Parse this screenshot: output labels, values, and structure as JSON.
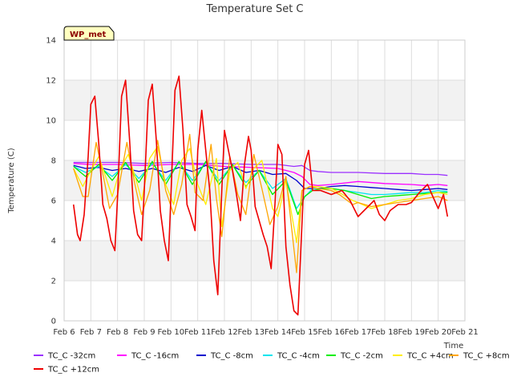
{
  "chart_data": {
    "type": "line",
    "title": "Temperature Set C",
    "xlabel": "Time",
    "ylabel": "Temperature (C)",
    "badge": "WP_met",
    "xlim": [
      6,
      21
    ],
    "ylim": [
      0,
      14
    ],
    "x_ticks": [
      {
        "v": 6,
        "label": "Feb 6"
      },
      {
        "v": 7,
        "label": "Feb 7"
      },
      {
        "v": 8,
        "label": "Feb 8"
      },
      {
        "v": 9,
        "label": "Feb 9"
      },
      {
        "v": 10,
        "label": "Feb 10"
      },
      {
        "v": 11,
        "label": "Feb 11"
      },
      {
        "v": 12,
        "label": "Feb 12"
      },
      {
        "v": 13,
        "label": "Feb 13"
      },
      {
        "v": 14,
        "label": "Feb 14"
      },
      {
        "v": 15,
        "label": "Feb 15"
      },
      {
        "v": 16,
        "label": "Feb 16"
      },
      {
        "v": 17,
        "label": "Feb 17"
      },
      {
        "v": 18,
        "label": "Feb 18"
      },
      {
        "v": 19,
        "label": "Feb 19"
      },
      {
        "v": 20,
        "label": "Feb 20"
      },
      {
        "v": 21,
        "label": "Feb 21"
      }
    ],
    "y_ticks": [
      0,
      2,
      4,
      6,
      8,
      10,
      12,
      14
    ],
    "grid": true,
    "legend_position": "bottom",
    "series": [
      {
        "name": "TC_C -32cm",
        "color": "#9b30ff",
        "x": [
          6.35,
          7,
          8,
          9,
          10,
          11,
          12,
          13,
          14,
          14.6,
          14.9,
          15.2,
          15.5,
          16,
          17,
          18,
          19,
          19.5,
          20,
          20.35
        ],
        "y": [
          7.9,
          7.9,
          7.9,
          7.85,
          7.9,
          7.85,
          7.85,
          7.8,
          7.8,
          7.7,
          7.75,
          7.5,
          7.45,
          7.4,
          7.4,
          7.35,
          7.35,
          7.3,
          7.3,
          7.25
        ]
      },
      {
        "name": "TC_C -16cm",
        "color": "#ff00ff",
        "x": [
          6.35,
          7,
          8,
          9,
          10,
          11,
          12,
          13,
          14,
          14.6,
          14.9,
          15.2,
          15.5,
          16,
          17,
          18,
          19,
          19.5,
          20,
          20.35
        ],
        "y": [
          7.85,
          7.8,
          7.8,
          7.75,
          7.8,
          7.8,
          7.7,
          7.65,
          7.6,
          7.4,
          7.2,
          6.8,
          6.75,
          6.8,
          6.95,
          6.85,
          6.8,
          6.75,
          6.8,
          6.75
        ]
      },
      {
        "name": "TC_C -8cm",
        "color": "#0000cd",
        "x": [
          6.35,
          6.8,
          7.3,
          7.8,
          8.3,
          8.8,
          9.3,
          9.8,
          10.3,
          10.8,
          11.3,
          11.8,
          12.3,
          12.8,
          13.3,
          13.8,
          14.3,
          14.7,
          15,
          15.5,
          16,
          16.5,
          17,
          17.5,
          18,
          18.5,
          19,
          19.5,
          20,
          20.35
        ],
        "y": [
          7.75,
          7.6,
          7.65,
          7.5,
          7.6,
          7.45,
          7.6,
          7.4,
          7.65,
          7.45,
          7.75,
          7.5,
          7.7,
          7.4,
          7.5,
          7.3,
          7.35,
          7.0,
          6.6,
          6.6,
          6.7,
          6.75,
          6.7,
          6.65,
          6.6,
          6.55,
          6.5,
          6.55,
          6.6,
          6.55
        ]
      },
      {
        "name": "TC_C -4cm",
        "color": "#00e5ee",
        "x": [
          6.35,
          6.8,
          7.3,
          7.8,
          8.3,
          8.8,
          9.3,
          9.8,
          10.3,
          10.8,
          11.3,
          11.8,
          12.3,
          12.8,
          13.3,
          13.8,
          14.3,
          14.7,
          14.95,
          15.3,
          15.7,
          16,
          16.5,
          17,
          17.5,
          18,
          18.5,
          19,
          19.5,
          20,
          20.35
        ],
        "y": [
          7.7,
          7.4,
          7.7,
          7.2,
          7.8,
          7.1,
          7.85,
          7.0,
          7.9,
          7.0,
          7.9,
          7.0,
          7.75,
          6.9,
          7.5,
          6.6,
          7.1,
          5.6,
          6.1,
          6.6,
          6.6,
          6.6,
          6.5,
          6.4,
          6.3,
          6.3,
          6.35,
          6.4,
          6.4,
          6.5,
          6.45
        ]
      },
      {
        "name": "TC_C -2cm",
        "color": "#00ee00",
        "x": [
          6.35,
          6.8,
          7.3,
          7.8,
          8.3,
          8.8,
          9.3,
          9.8,
          10.3,
          10.8,
          11.3,
          11.8,
          12.3,
          12.8,
          13.3,
          13.8,
          14.3,
          14.75,
          15,
          15.3,
          15.7,
          16,
          16.5,
          17,
          17.5,
          18,
          18.5,
          19,
          19.5,
          20,
          20.35
        ],
        "y": [
          7.7,
          7.2,
          7.8,
          7.0,
          7.9,
          6.9,
          7.95,
          6.8,
          7.95,
          6.8,
          7.95,
          6.8,
          7.8,
          6.7,
          7.5,
          6.3,
          7.0,
          5.3,
          6.2,
          6.5,
          6.6,
          6.6,
          6.5,
          6.3,
          6.1,
          6.2,
          6.25,
          6.3,
          6.35,
          6.4,
          6.4
        ]
      },
      {
        "name": "TC_C +4cm",
        "color": "#ffee00",
        "x": [
          6.35,
          6.7,
          7.0,
          7.3,
          7.6,
          7.8,
          8.1,
          8.4,
          8.7,
          8.9,
          9.2,
          9.5,
          9.8,
          10.1,
          10.4,
          10.7,
          11.0,
          11.3,
          11.7,
          11.9,
          12.2,
          12.5,
          12.8,
          13.1,
          13.4,
          13.8,
          14.0,
          14.3,
          14.7,
          14.9,
          15.2,
          15.5,
          16,
          16.3,
          16.8,
          17,
          17.5,
          18,
          18.5,
          19,
          19.5,
          20,
          20.35
        ],
        "y": [
          7.6,
          6.7,
          7.5,
          8.2,
          7.0,
          6.2,
          7.6,
          8.3,
          7.0,
          6.0,
          8.1,
          8.7,
          6.8,
          5.8,
          8.0,
          8.6,
          6.8,
          5.8,
          8.1,
          4.7,
          7.5,
          7.9,
          6.6,
          7.6,
          8.0,
          5.6,
          5.2,
          7.0,
          3.9,
          6.5,
          6.7,
          6.7,
          6.6,
          6.4,
          6.0,
          5.9,
          5.6,
          5.8,
          6.0,
          6.1,
          6.3,
          6.4,
          6.3
        ]
      },
      {
        "name": "TC_C +8cm",
        "color": "#ffa500",
        "x": [
          6.35,
          6.7,
          6.9,
          7.2,
          7.5,
          7.7,
          8.0,
          8.35,
          8.65,
          8.9,
          9.2,
          9.5,
          9.8,
          10.1,
          10.4,
          10.7,
          10.9,
          11.2,
          11.5,
          11.7,
          11.9,
          12.2,
          12.5,
          12.8,
          13.1,
          13.4,
          13.7,
          14.0,
          14.3,
          14.7,
          14.9,
          15.2,
          15.5,
          16,
          16.3,
          16.8,
          17,
          17.5,
          18,
          18.5,
          19,
          19.5,
          20,
          20.35
        ],
        "y": [
          7.6,
          6.2,
          6.2,
          8.9,
          7.0,
          5.6,
          6.3,
          8.9,
          6.8,
          5.3,
          6.5,
          9.0,
          6.5,
          5.3,
          6.8,
          9.3,
          6.4,
          6.0,
          8.8,
          6.1,
          4.2,
          8.2,
          6.3,
          5.3,
          8.3,
          6.6,
          4.8,
          5.7,
          7.2,
          2.4,
          6.5,
          6.7,
          6.6,
          6.5,
          6.3,
          5.8,
          5.9,
          5.7,
          5.8,
          5.9,
          6.0,
          6.1,
          6.2,
          6.0
        ]
      },
      {
        "name": "TC_C +12cm",
        "color": "#ee0000",
        "x": [
          6.35,
          6.5,
          6.6,
          6.75,
          6.9,
          7.0,
          7.15,
          7.3,
          7.45,
          7.6,
          7.75,
          7.9,
          8.0,
          8.15,
          8.3,
          8.45,
          8.6,
          8.75,
          8.9,
          9.0,
          9.15,
          9.3,
          9.45,
          9.6,
          9.75,
          9.9,
          10.0,
          10.15,
          10.3,
          10.45,
          10.6,
          10.75,
          10.9,
          11.0,
          11.15,
          11.3,
          11.45,
          11.6,
          11.75,
          11.9,
          12.0,
          12.15,
          12.3,
          12.45,
          12.6,
          12.75,
          12.9,
          13.0,
          13.15,
          13.3,
          13.45,
          13.6,
          13.75,
          13.9,
          14.0,
          14.15,
          14.3,
          14.45,
          14.6,
          14.75,
          14.9,
          15.0,
          15.15,
          15.3,
          15.6,
          16,
          16.4,
          16.7,
          17,
          17.3,
          17.6,
          17.8,
          18,
          18.2,
          18.5,
          18.8,
          19,
          19.3,
          19.6,
          19.8,
          20,
          20.2,
          20.35
        ],
        "y": [
          5.8,
          4.3,
          4.0,
          5.3,
          8.2,
          10.8,
          11.2,
          8.8,
          5.8,
          5.1,
          4.0,
          3.5,
          6.2,
          11.2,
          12.0,
          9.0,
          5.5,
          4.3,
          4.0,
          6.5,
          11.0,
          11.8,
          9.0,
          5.5,
          4.0,
          3.0,
          6.3,
          11.5,
          12.2,
          9.5,
          5.8,
          5.2,
          4.5,
          8.5,
          10.5,
          8.5,
          6.5,
          3.0,
          1.3,
          6.5,
          9.5,
          8.5,
          7.5,
          6.3,
          5.0,
          7.8,
          9.2,
          8.5,
          5.7,
          5.0,
          4.3,
          3.7,
          2.6,
          6.0,
          8.8,
          8.3,
          3.7,
          1.8,
          0.5,
          0.3,
          4.8,
          7.8,
          8.5,
          6.5,
          6.5,
          6.3,
          6.5,
          6.0,
          5.2,
          5.6,
          6.0,
          5.3,
          5.0,
          5.5,
          5.8,
          5.8,
          5.9,
          6.4,
          6.8,
          6.2,
          5.6,
          6.3,
          5.2
        ]
      }
    ]
  }
}
